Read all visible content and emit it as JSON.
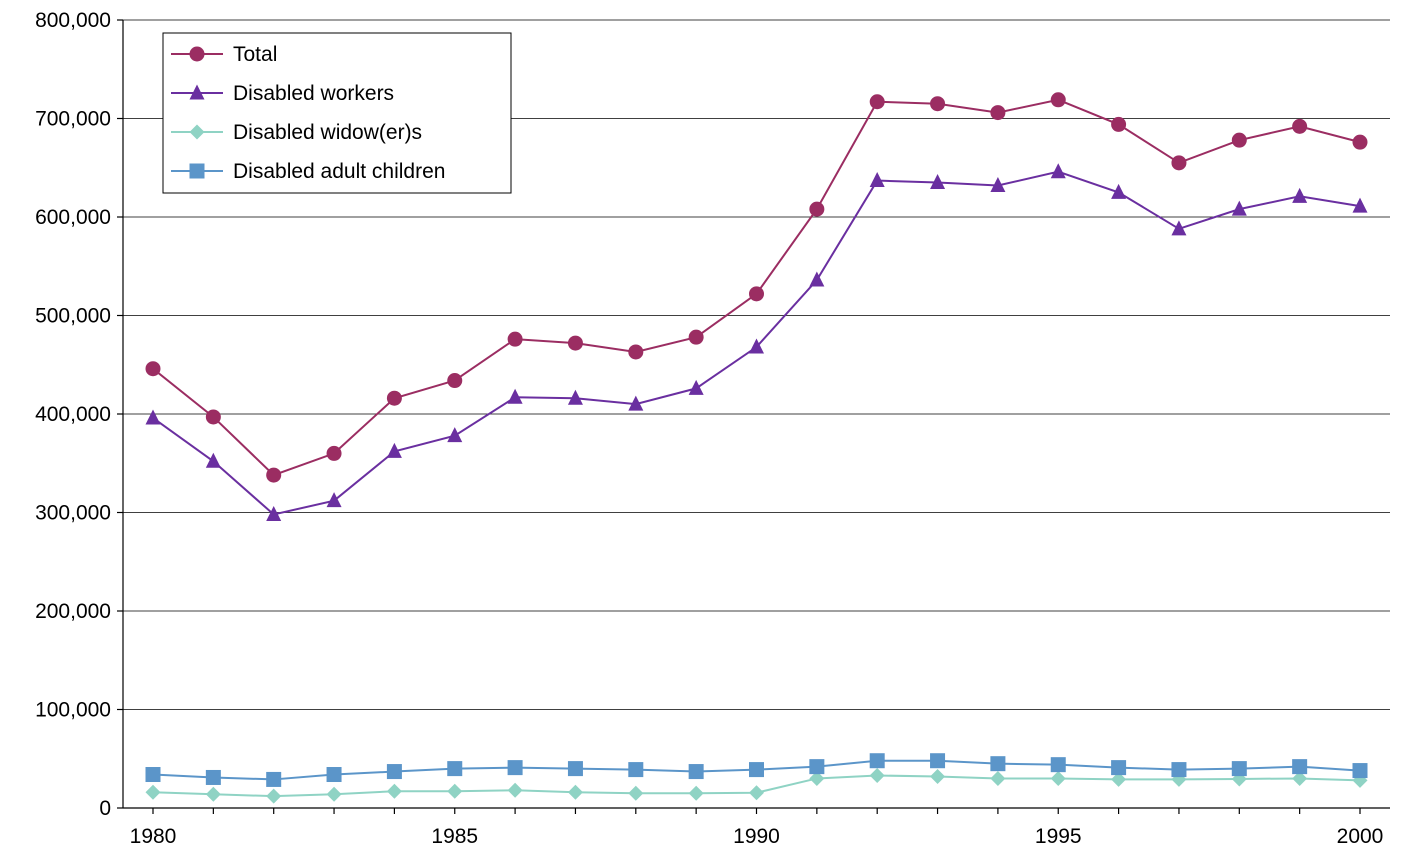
{
  "chart_data": {
    "type": "line",
    "title": "",
    "xlabel": "",
    "ylabel": "",
    "x": [
      1980,
      1981,
      1982,
      1983,
      1984,
      1985,
      1986,
      1987,
      1988,
      1989,
      1990,
      1991,
      1992,
      1993,
      1994,
      1995,
      1996,
      1997,
      1998,
      1999,
      2000
    ],
    "xlim": [
      1980,
      2000
    ],
    "ylim": [
      0,
      800000
    ],
    "x_ticks": [
      "1980",
      "1985",
      "1990",
      "1995",
      "2000"
    ],
    "y_ticks": [
      "0",
      "100,000",
      "200,000",
      "300,000",
      "400,000",
      "500,000",
      "600,000",
      "700,000",
      "800,000"
    ],
    "grid": "horizontal",
    "legend_position": "top-left",
    "series": [
      {
        "name": "Total",
        "color": "#9b2d62",
        "marker": "circle",
        "values": [
          446000,
          397000,
          338000,
          360000,
          416000,
          434000,
          476000,
          472000,
          463000,
          478000,
          522000,
          608000,
          717000,
          715000,
          706000,
          719000,
          694000,
          655000,
          678000,
          692000,
          676000
        ]
      },
      {
        "name": "Disabled workers",
        "color": "#6a2fa0",
        "marker": "triangle",
        "values": [
          396000,
          352000,
          298000,
          312000,
          362000,
          378000,
          417000,
          416000,
          410000,
          426000,
          468000,
          536000,
          637000,
          635000,
          632000,
          646000,
          625000,
          588000,
          608000,
          621000,
          611000
        ]
      },
      {
        "name": "Disabled widow(er)s",
        "color": "#8fd3c4",
        "marker": "diamond",
        "values": [
          16000,
          14000,
          12000,
          14000,
          17000,
          17000,
          18000,
          16000,
          15000,
          15000,
          15500,
          30000,
          33000,
          32000,
          30000,
          30000,
          29000,
          29000,
          29500,
          30000,
          28000
        ]
      },
      {
        "name": "Disabled adult children",
        "color": "#5b95c9",
        "marker": "square",
        "values": [
          34000,
          31000,
          29000,
          34000,
          37000,
          40000,
          41000,
          40000,
          39000,
          37000,
          39000,
          42000,
          48000,
          48000,
          45000,
          44000,
          41000,
          39000,
          40000,
          42000,
          38000
        ]
      }
    ]
  }
}
